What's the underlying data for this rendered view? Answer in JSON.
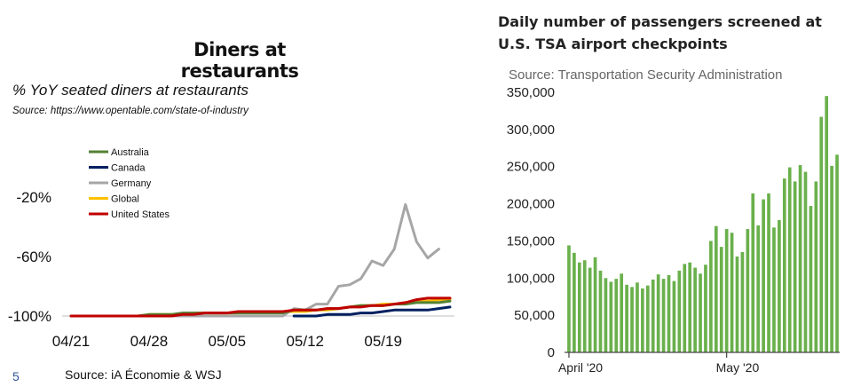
{
  "footer": {
    "page_number": "5",
    "source": "Source: iA Économie & WSJ"
  },
  "chart_data": [
    {
      "type": "line",
      "title": "Diners at restaurants",
      "subtitle": "% YoY seated diners at restaurants",
      "source": "Source: https://www.opentable.com/state-of-industry",
      "x_ticks": [
        "04/21",
        "04/28",
        "05/05",
        "05/12",
        "05/19"
      ],
      "y_ticks": [
        "-20%",
        "-60%",
        "-100%"
      ],
      "y_tick_values": [
        -20,
        -60,
        -100
      ],
      "ylim": [
        -100,
        20
      ],
      "legend_position": "top-left",
      "series": [
        {
          "name": "Australia",
          "color": "#538135",
          "values": [
            -100,
            -100,
            -100,
            -100,
            -100,
            -100,
            -100,
            -99,
            -99,
            -99,
            -98,
            -98,
            -98,
            -98,
            -98,
            -98,
            -98,
            -98,
            -98,
            -98,
            -96,
            -96,
            -96,
            -95,
            -95,
            -94,
            -93,
            -93,
            -93,
            -92,
            -92,
            -91,
            -91,
            -91,
            -90
          ]
        },
        {
          "name": "Canada",
          "color": "#002060",
          "values": [
            null,
            null,
            null,
            null,
            null,
            null,
            null,
            null,
            null,
            null,
            null,
            null,
            null,
            null,
            null,
            null,
            null,
            null,
            null,
            null,
            -100,
            -100,
            -100,
            -99,
            -99,
            -99,
            -98,
            -98,
            -97,
            -96,
            -96,
            -96,
            -96,
            -95,
            -94
          ]
        },
        {
          "name": "Germany",
          "color": "#a6a6a6",
          "values": [
            -100,
            -100,
            -100,
            -100,
            -100,
            -100,
            -100,
            -100,
            -100,
            -100,
            -100,
            -100,
            -100,
            -100,
            -100,
            -100,
            -100,
            -100,
            -100,
            -100,
            -95,
            -96,
            -92,
            -92,
            -80,
            -79,
            -75,
            -63,
            -66,
            -55,
            -25,
            -50,
            -61,
            -55
          ]
        },
        {
          "name": "Global",
          "color": "#ffc000",
          "values": [
            -100,
            -100,
            -100,
            -100,
            -100,
            -100,
            -100,
            -99,
            -99,
            -99,
            -99,
            -98,
            -98,
            -98,
            -98,
            -98,
            -97,
            -97,
            -97,
            -97,
            -97,
            -97,
            -96,
            -96,
            -95,
            -94,
            -93,
            -93,
            -92,
            -92,
            -91,
            -90,
            -90,
            -89,
            -89
          ]
        },
        {
          "name": "United States",
          "color": "#c00000",
          "values": [
            -100,
            -100,
            -100,
            -100,
            -100,
            -100,
            -100,
            -100,
            -100,
            -100,
            -99,
            -99,
            -98,
            -98,
            -98,
            -97,
            -97,
            -97,
            -97,
            -97,
            -96,
            -96,
            -96,
            -95,
            -95,
            -94,
            -94,
            -93,
            -93,
            -92,
            -91,
            -89,
            -88,
            -88,
            -88
          ]
        }
      ]
    },
    {
      "type": "bar",
      "title": "Daily number of passengers screened at U.S. TSA airport checkpoints",
      "source": "Source: Transportation Security Administration",
      "x_ticks": [
        "April '20",
        "May '20"
      ],
      "y_ticks": [
        "350,000",
        "300,000",
        "250,000",
        "200,000",
        "150,000",
        "100,000",
        "50,000",
        "0"
      ],
      "y_tick_values": [
        350000,
        300000,
        250000,
        200000,
        150000,
        100000,
        50000,
        0
      ],
      "ylim": [
        0,
        350000
      ],
      "color": "#6ab04c",
      "values": [
        144000,
        134000,
        121000,
        124000,
        114000,
        128000,
        110000,
        100000,
        95000,
        99000,
        106000,
        91000,
        88000,
        94000,
        86000,
        90000,
        98000,
        105000,
        99000,
        104000,
        96000,
        110000,
        119000,
        121000,
        114000,
        106000,
        118000,
        150000,
        170000,
        142000,
        166000,
        161000,
        129000,
        135000,
        166000,
        214000,
        171000,
        206000,
        214000,
        168000,
        178000,
        234000,
        249000,
        230000,
        252000,
        243000,
        197000,
        230000,
        317000,
        345000,
        251000,
        266000
      ]
    }
  ]
}
